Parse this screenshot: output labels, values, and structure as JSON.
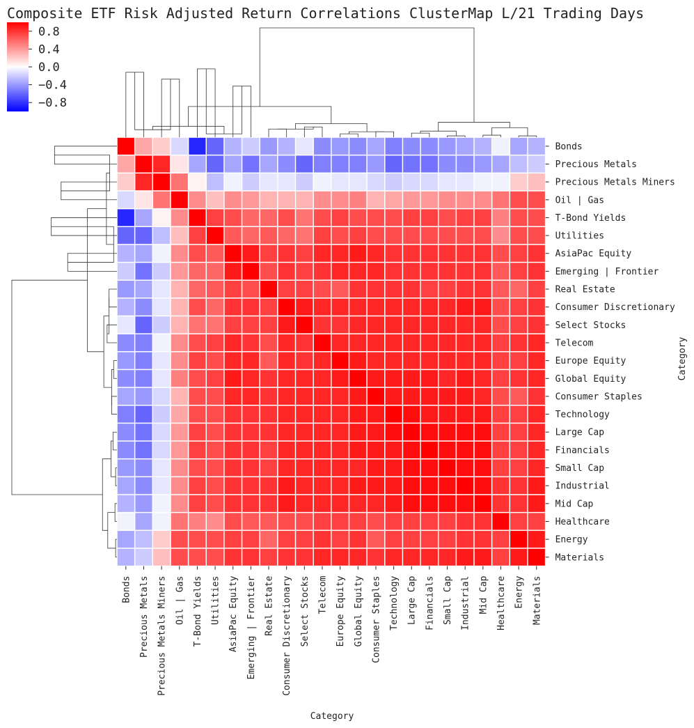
{
  "chart_data": {
    "type": "heatmap",
    "title": "Composite ETF Risk Adjusted Return Correlations ClusterMap L/21 Trading Days",
    "xlabel": "Category",
    "ylabel": "Category",
    "colorbar": {
      "colormap": "bwr",
      "vmin": -1.0,
      "vmax": 1.0,
      "ticks": [
        0.8,
        0.4,
        0.0,
        -0.4,
        -0.8
      ],
      "tick_labels": [
        "0.8",
        "0.4",
        "0.0",
        "−0.4",
        "−0.8"
      ],
      "colors": {
        "negative": "#0000ff",
        "neutral": "#ffffff",
        "positive": "#ff0000"
      }
    },
    "categories": [
      "Bonds",
      "Precious Metals",
      "Precious Metals Miners",
      "Oil | Gas",
      "T-Bond Yields",
      "Utilities",
      "AsiaPac Equity",
      "Emerging | Frontier",
      "Real Estate",
      "Consumer Discretionary",
      "Select Stocks",
      "Telecom",
      "Europe Equity",
      "Global Equity",
      "Consumer Staples",
      "Technology",
      "Large Cap",
      "Financials",
      "Small Cap",
      "Industrial",
      "Mid Cap",
      "Healthcare",
      "Energy",
      "Materials"
    ],
    "matrix": [
      [
        1.0,
        0.35,
        0.2,
        -0.15,
        -0.85,
        -0.6,
        -0.3,
        -0.2,
        -0.4,
        -0.3,
        -0.1,
        -0.45,
        -0.4,
        -0.45,
        -0.35,
        -0.5,
        -0.45,
        -0.45,
        -0.4,
        -0.35,
        -0.3,
        -0.05,
        -0.35,
        -0.3
      ],
      [
        0.35,
        1.0,
        0.85,
        0.1,
        -0.35,
        -0.6,
        -0.35,
        -0.55,
        -0.35,
        -0.45,
        -0.6,
        -0.5,
        -0.5,
        -0.5,
        -0.4,
        -0.6,
        -0.55,
        -0.55,
        -0.45,
        -0.45,
        -0.4,
        -0.35,
        -0.25,
        -0.2
      ],
      [
        0.2,
        0.85,
        1.0,
        0.55,
        0.05,
        -0.25,
        -0.05,
        -0.2,
        -0.1,
        -0.1,
        -0.2,
        -0.05,
        -0.1,
        -0.1,
        -0.15,
        -0.2,
        -0.15,
        -0.15,
        -0.1,
        -0.1,
        -0.05,
        -0.05,
        0.2,
        0.25
      ],
      [
        -0.15,
        0.1,
        0.55,
        1.0,
        0.45,
        0.25,
        0.45,
        0.4,
        0.3,
        0.3,
        0.3,
        0.45,
        0.45,
        0.5,
        0.3,
        0.35,
        0.4,
        0.4,
        0.45,
        0.45,
        0.45,
        0.55,
        0.7,
        0.7
      ],
      [
        -0.85,
        -0.35,
        0.05,
        0.45,
        1.0,
        0.75,
        0.7,
        0.6,
        0.6,
        0.7,
        0.55,
        0.7,
        0.75,
        0.7,
        0.7,
        0.7,
        0.75,
        0.75,
        0.7,
        0.75,
        0.75,
        0.5,
        0.7,
        0.7
      ],
      [
        -0.6,
        -0.6,
        -0.25,
        0.25,
        0.75,
        1.0,
        0.65,
        0.6,
        0.65,
        0.6,
        0.55,
        0.75,
        0.7,
        0.75,
        0.7,
        0.7,
        0.7,
        0.7,
        0.7,
        0.7,
        0.7,
        0.45,
        0.7,
        0.7
      ],
      [
        -0.3,
        -0.35,
        -0.05,
        0.45,
        0.7,
        0.65,
        1.0,
        0.9,
        0.75,
        0.8,
        0.75,
        0.85,
        0.85,
        0.9,
        0.85,
        0.8,
        0.8,
        0.8,
        0.8,
        0.8,
        0.8,
        0.7,
        0.75,
        0.8
      ],
      [
        -0.2,
        -0.55,
        -0.2,
        0.4,
        0.6,
        0.6,
        0.9,
        1.0,
        0.7,
        0.8,
        0.75,
        0.8,
        0.85,
        0.85,
        0.85,
        0.8,
        0.8,
        0.8,
        0.8,
        0.8,
        0.8,
        0.65,
        0.75,
        0.8
      ],
      [
        -0.4,
        -0.35,
        -0.1,
        0.3,
        0.6,
        0.65,
        0.75,
        0.7,
        1.0,
        0.75,
        0.75,
        0.7,
        0.65,
        0.8,
        0.8,
        0.8,
        0.8,
        0.75,
        0.75,
        0.8,
        0.8,
        0.65,
        0.6,
        0.75
      ],
      [
        -0.3,
        -0.45,
        -0.1,
        0.3,
        0.7,
        0.6,
        0.8,
        0.8,
        0.75,
        1.0,
        0.9,
        0.85,
        0.85,
        0.85,
        0.85,
        0.85,
        0.85,
        0.85,
        0.85,
        0.9,
        0.9,
        0.7,
        0.75,
        0.8
      ],
      [
        -0.1,
        -0.6,
        -0.2,
        0.3,
        0.55,
        0.55,
        0.75,
        0.75,
        0.75,
        0.9,
        1.0,
        0.8,
        0.8,
        0.85,
        0.85,
        0.85,
        0.85,
        0.85,
        0.85,
        0.85,
        0.85,
        0.7,
        0.75,
        0.8
      ],
      [
        -0.45,
        -0.5,
        -0.05,
        0.45,
        0.7,
        0.75,
        0.85,
        0.8,
        0.7,
        0.85,
        0.8,
        1.0,
        0.85,
        0.85,
        0.85,
        0.85,
        0.85,
        0.85,
        0.85,
        0.85,
        0.85,
        0.75,
        0.8,
        0.85
      ],
      [
        -0.4,
        -0.5,
        -0.1,
        0.45,
        0.75,
        0.7,
        0.85,
        0.85,
        0.65,
        0.85,
        0.8,
        0.85,
        1.0,
        0.9,
        0.85,
        0.85,
        0.85,
        0.85,
        0.85,
        0.85,
        0.85,
        0.75,
        0.75,
        0.85
      ],
      [
        -0.45,
        -0.5,
        -0.1,
        0.5,
        0.7,
        0.75,
        0.9,
        0.85,
        0.8,
        0.85,
        0.85,
        0.85,
        0.9,
        1.0,
        0.9,
        0.9,
        0.9,
        0.9,
        0.85,
        0.9,
        0.85,
        0.75,
        0.8,
        0.85
      ],
      [
        -0.35,
        -0.4,
        -0.15,
        0.3,
        0.7,
        0.7,
        0.85,
        0.85,
        0.8,
        0.85,
        0.85,
        0.85,
        0.85,
        0.9,
        1.0,
        0.9,
        0.9,
        0.9,
        0.9,
        0.9,
        0.85,
        0.7,
        0.65,
        0.8
      ],
      [
        -0.5,
        -0.6,
        -0.2,
        0.35,
        0.7,
        0.7,
        0.8,
        0.8,
        0.8,
        0.85,
        0.85,
        0.85,
        0.85,
        0.9,
        0.9,
        1.0,
        0.95,
        0.9,
        0.9,
        0.9,
        0.9,
        0.75,
        0.75,
        0.85
      ],
      [
        -0.45,
        -0.55,
        -0.15,
        0.4,
        0.75,
        0.7,
        0.8,
        0.8,
        0.8,
        0.85,
        0.85,
        0.85,
        0.85,
        0.9,
        0.9,
        0.95,
        1.0,
        0.95,
        0.95,
        0.95,
        0.95,
        0.75,
        0.75,
        0.85
      ],
      [
        -0.45,
        -0.55,
        -0.15,
        0.4,
        0.75,
        0.7,
        0.8,
        0.8,
        0.75,
        0.85,
        0.85,
        0.85,
        0.85,
        0.9,
        0.9,
        0.9,
        0.95,
        1.0,
        0.95,
        0.95,
        0.95,
        0.75,
        0.75,
        0.85
      ],
      [
        -0.4,
        -0.45,
        -0.1,
        0.45,
        0.7,
        0.7,
        0.8,
        0.8,
        0.75,
        0.85,
        0.85,
        0.85,
        0.85,
        0.85,
        0.9,
        0.9,
        0.95,
        0.95,
        1.0,
        0.95,
        0.95,
        0.75,
        0.75,
        0.85
      ],
      [
        -0.35,
        -0.45,
        -0.1,
        0.45,
        0.75,
        0.7,
        0.8,
        0.8,
        0.8,
        0.9,
        0.85,
        0.85,
        0.85,
        0.9,
        0.9,
        0.9,
        0.95,
        0.95,
        0.95,
        1.0,
        0.95,
        0.8,
        0.8,
        0.9
      ],
      [
        -0.3,
        -0.4,
        -0.05,
        0.45,
        0.75,
        0.7,
        0.8,
        0.8,
        0.8,
        0.9,
        0.85,
        0.85,
        0.85,
        0.85,
        0.85,
        0.9,
        0.95,
        0.95,
        0.95,
        0.95,
        1.0,
        0.8,
        0.8,
        0.9
      ],
      [
        -0.05,
        -0.35,
        -0.05,
        0.55,
        0.5,
        0.45,
        0.7,
        0.65,
        0.65,
        0.7,
        0.7,
        0.75,
        0.75,
        0.75,
        0.7,
        0.75,
        0.75,
        0.75,
        0.75,
        0.8,
        0.8,
        1.0,
        0.75,
        0.75
      ],
      [
        -0.35,
        -0.25,
        0.2,
        0.7,
        0.7,
        0.7,
        0.75,
        0.75,
        0.6,
        0.75,
        0.75,
        0.8,
        0.75,
        0.8,
        0.65,
        0.75,
        0.75,
        0.75,
        0.75,
        0.8,
        0.8,
        0.75,
        1.0,
        0.9
      ],
      [
        -0.3,
        -0.2,
        0.25,
        0.7,
        0.7,
        0.7,
        0.8,
        0.8,
        0.75,
        0.8,
        0.8,
        0.85,
        0.85,
        0.85,
        0.8,
        0.85,
        0.85,
        0.85,
        0.85,
        0.9,
        0.9,
        0.75,
        0.9,
        1.0
      ]
    ],
    "linkage": [
      {
        "children": [
          0,
          1
        ],
        "height": 0.95
      },
      {
        "children": [
          2,
          3
        ],
        "height": 0.85
      },
      {
        "children": [
          4,
          5
        ],
        "height": 1.0
      },
      {
        "children": [
          6,
          7
        ],
        "height": 0.75
      },
      {
        "children": [
          8,
          9
        ],
        "height": 0.12
      },
      {
        "children": [
          10,
          11
        ],
        "height": 0.15
      },
      {
        "children": [
          12,
          13
        ],
        "height": 0.05
      },
      {
        "children": [
          14,
          15
        ],
        "height": 0.08
      },
      {
        "children": [
          16,
          17
        ],
        "height": 0.06
      },
      {
        "children": [
          18,
          19
        ],
        "height": 0.02
      },
      {
        "children": [
          20,
          21
        ],
        "height": 0.03
      },
      {
        "children": [
          22,
          23
        ],
        "height": 0.02
      },
      {
        "children": [
          24,
          25
        ],
        "height": 0.11
      },
      {
        "children": [
          26,
          27
        ],
        "height": 0.05
      },
      {
        "children": [
          28,
          29
        ],
        "height": 0.12
      },
      {
        "children": [
          30,
          31
        ],
        "height": 0.08
      },
      {
        "children": [
          32,
          33
        ],
        "height": 0.09
      },
      {
        "children": [
          34,
          35
        ],
        "height": 0.14
      },
      {
        "children": [
          36,
          37
        ],
        "height": 0.16
      },
      {
        "children": [
          38,
          39
        ],
        "height": 0.2
      },
      {
        "children": [
          40,
          41
        ],
        "height": 0.22
      },
      {
        "children": [
          42,
          43
        ],
        "height": 0.45
      },
      {
        "children": [
          44,
          45
        ],
        "height": 1.6
      }
    ]
  }
}
